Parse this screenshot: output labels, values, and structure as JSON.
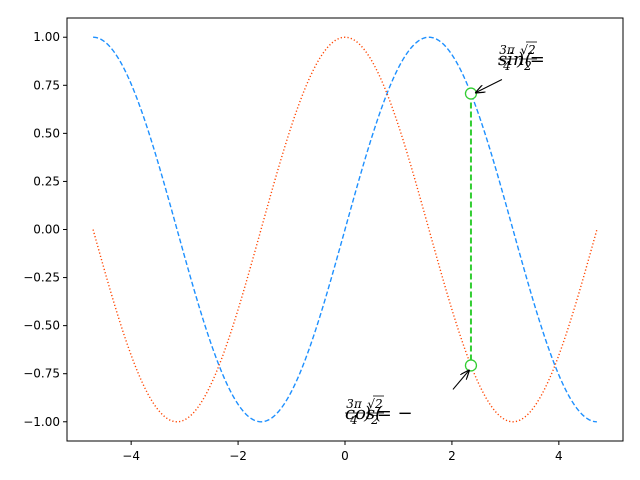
{
  "chart_data": {
    "type": "line",
    "title": "",
    "xlabel": "",
    "ylabel": "",
    "xlim": [
      -5.2,
      5.2
    ],
    "ylim": [
      -1.1,
      1.1
    ],
    "x_ticks": [
      -4,
      -2,
      0,
      2,
      4
    ],
    "y_ticks": [
      -1.0,
      -0.75,
      -0.5,
      -0.25,
      0.0,
      0.25,
      0.5,
      0.75,
      1.0
    ],
    "x_tick_labels": [
      "−4",
      "−2",
      "0",
      "2",
      "4"
    ],
    "y_tick_labels": [
      "−1.00",
      "−0.75",
      "−0.50",
      "−0.25",
      "0.00",
      "0.25",
      "0.50",
      "0.75",
      "1.00"
    ],
    "grid": false,
    "series": [
      {
        "function": "sin",
        "x_range": [
          -4.712,
          4.712
        ],
        "color": "#1e90ff",
        "style": "dashed"
      },
      {
        "function": "cos",
        "x_range": [
          -4.712,
          4.712
        ],
        "color": "#ff4500",
        "style": "dotted"
      }
    ],
    "highlight_x": 2.356,
    "highlight_points": [
      {
        "x": 2.356,
        "y": 0.7071,
        "annotation": {
          "func": "sin",
          "frac_num": "3π",
          "frac_den": "4",
          "eq": "=",
          "sign": "",
          "sqrt": "√2",
          "sqrt_den": "2"
        }
      },
      {
        "x": 2.356,
        "y": -0.7071,
        "annotation": {
          "func": "cos",
          "frac_num": "3π",
          "frac_den": "4",
          "eq": "=",
          "sign": "−",
          "sqrt": "√2",
          "sqrt_den": "2"
        }
      }
    ],
    "highlight_color": "#32cd32"
  }
}
